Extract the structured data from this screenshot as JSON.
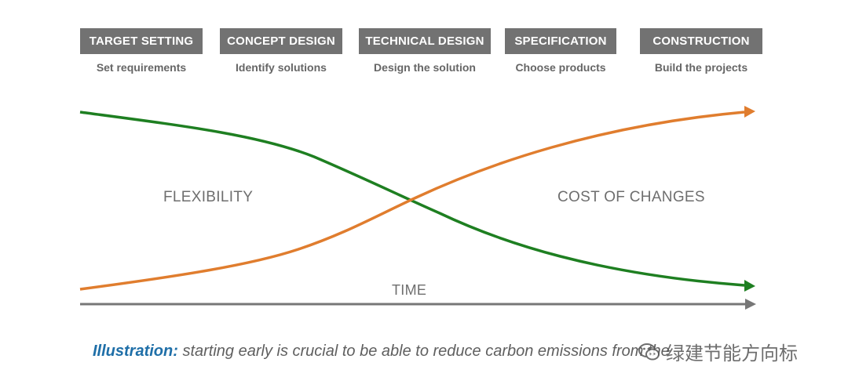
{
  "phases": [
    {
      "title": "TARGET SETTING",
      "subtitle": "Set requirements"
    },
    {
      "title": "CONCEPT DESIGN",
      "subtitle": "Identify solutions"
    },
    {
      "title": "TECHNICAL DESIGN",
      "subtitle": "Design the solution"
    },
    {
      "title": "SPECIFICATION",
      "subtitle": "Choose products"
    },
    {
      "title": "CONSTRUCTION",
      "subtitle": "Build the projects"
    }
  ],
  "diagram": {
    "flexibility_label": "FLEXIBILITY",
    "cost_label": "COST OF CHANGES",
    "time_label": "TIME"
  },
  "caption": {
    "lead": "Illustration:",
    "text": "starting early is crucial to be able to reduce carbon emissions from the"
  },
  "watermark": {
    "text": "绿建节能方向标",
    "icon": "wechat-icon"
  },
  "colors": {
    "box": "#727272",
    "flexibility": "#1e7f21",
    "cost": "#e07d2e",
    "axis": "#777777",
    "caption_lead": "#1f6fa8"
  }
}
